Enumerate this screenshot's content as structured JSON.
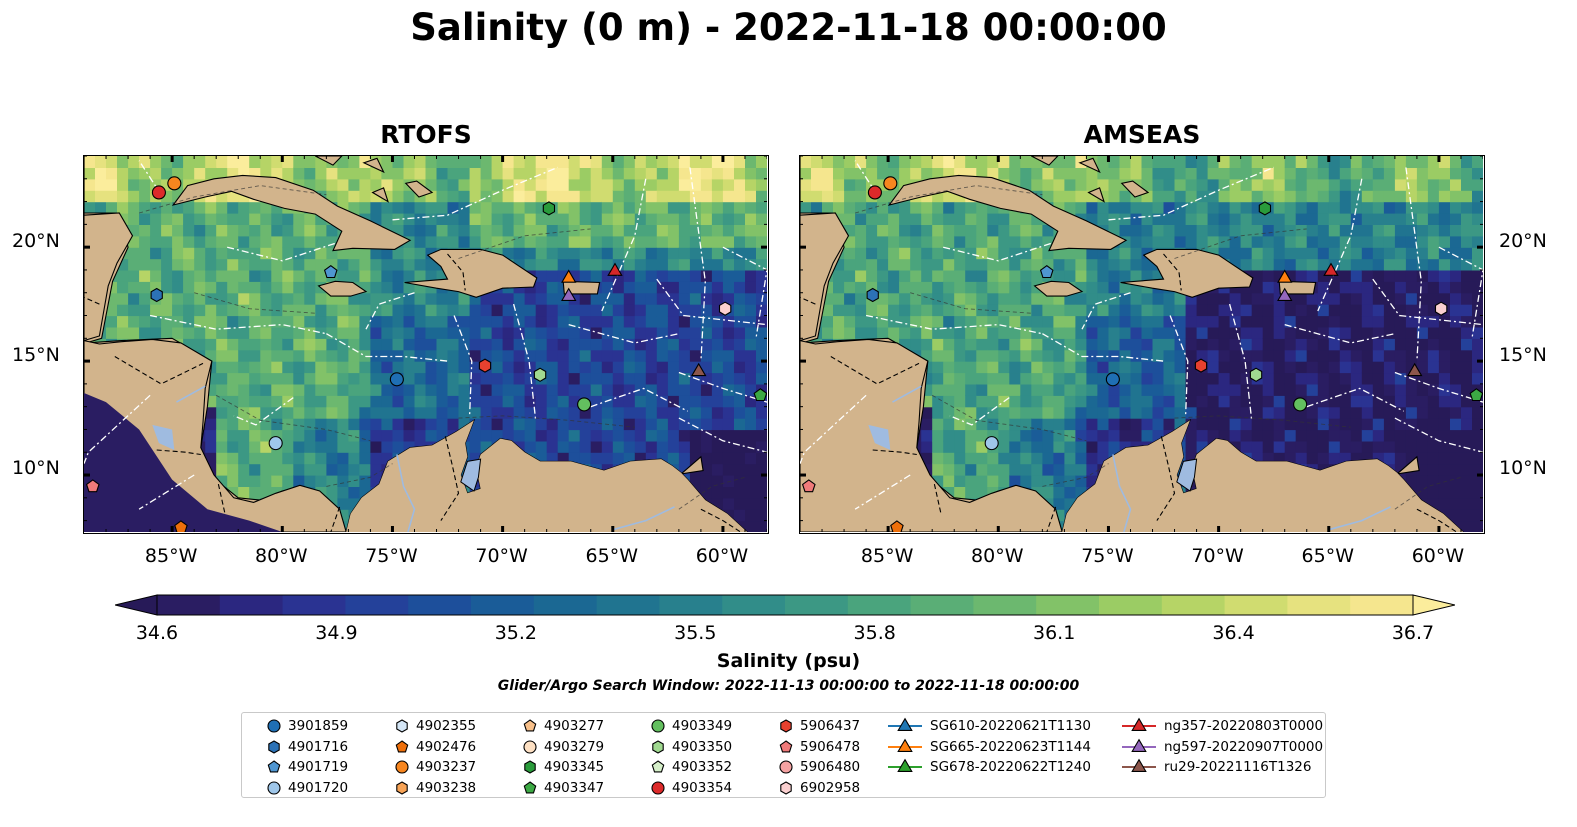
{
  "figure": {
    "title": "Salinity (0 m) - 2022-11-18 00:00:00",
    "search_window": "Glider/Argo Search Window: 2022-11-13 00:00:00 to 2022-11-18 00:00:00"
  },
  "maps": [
    {
      "title": "RTOFS",
      "variant": "rtofs"
    },
    {
      "title": "AMSEAS",
      "variant": "amseas"
    }
  ],
  "axes": {
    "lon_range": [
      -89,
      -58
    ],
    "lat_range": [
      7.5,
      24
    ],
    "lon_ticks": [
      -85,
      -80,
      -75,
      -70,
      -65,
      -60
    ],
    "lon_tick_labels": [
      "85°W",
      "80°W",
      "75°W",
      "70°W",
      "65°W",
      "60°W"
    ],
    "lat_ticks": [
      10,
      15,
      20
    ],
    "lat_tick_labels": [
      "10°N",
      "15°N",
      "20°N"
    ]
  },
  "colorbar": {
    "label": "Salinity (psu)",
    "min": 34.6,
    "max": 36.7,
    "ticks": [
      "34.6",
      "34.9",
      "35.2",
      "35.5",
      "35.8",
      "36.1",
      "36.4",
      "36.7"
    ],
    "colors": [
      "#2a1d62",
      "#2b2780",
      "#2a3392",
      "#24419a",
      "#1d4f9b",
      "#1a5c98",
      "#1b6893",
      "#207490",
      "#28808d",
      "#318d89",
      "#3c9884",
      "#4aa47d",
      "#5aae76",
      "#6cb86f",
      "#82c268",
      "#9bcc64",
      "#b6d466",
      "#d0dc70",
      "#e6e27f",
      "#f5e68e"
    ],
    "under_color": "#271a58",
    "over_color": "#fbed9c"
  },
  "colors": {
    "land": "#d2b48c",
    "lake": "#9fbbe0",
    "pacific_amseas": "#9ab6e2"
  },
  "markers": [
    {
      "id": "3901859",
      "shape": "circle",
      "color": "#1f6fb4",
      "lon": null,
      "lat": null
    },
    {
      "id": "4901716",
      "shape": "hexagon",
      "color": "#2c72b6",
      "lon": null,
      "lat": null
    },
    {
      "id": "4901719",
      "shape": "pentagon",
      "color": "#4f96d1",
      "lon": null,
      "lat": null
    },
    {
      "id": "4901720",
      "shape": "circle",
      "color": "#9fc7ea",
      "lon": -80.3,
      "lat": 11.4
    },
    {
      "id": "4902355",
      "shape": "hexagon",
      "color": "#d4e6f6",
      "lon": null,
      "lat": null
    },
    {
      "id": "4902476",
      "shape": "pentagon",
      "color": "#ee6f0a",
      "lon": -84.6,
      "lat": 7.7
    },
    {
      "id": "4903237",
      "shape": "circle",
      "color": "#f7861f",
      "lon": -84.9,
      "lat": 22.8
    },
    {
      "id": "4903238",
      "shape": "hexagon",
      "color": "#f7a356",
      "lon": null,
      "lat": null
    },
    {
      "id": "4903277",
      "shape": "pentagon",
      "color": "#f8c08a",
      "lon": null,
      "lat": null
    },
    {
      "id": "4903279",
      "shape": "circle",
      "color": "#fde0c3",
      "lon": null,
      "lat": null
    },
    {
      "id": "4903345",
      "shape": "hexagon",
      "color": "#2a9b3b",
      "lon": -67.9,
      "lat": 21.7
    },
    {
      "id": "4903347",
      "shape": "pentagon",
      "color": "#3ca944",
      "lon": -58.3,
      "lat": 13.5
    },
    {
      "id": "4903349",
      "shape": "circle",
      "color": "#63bf5f",
      "lon": -66.3,
      "lat": 13.1
    },
    {
      "id": "4903350",
      "shape": "hexagon",
      "color": "#a0d990",
      "lon": -68.3,
      "lat": 14.4
    },
    {
      "id": "4903352",
      "shape": "pentagon",
      "color": "#d5efc9",
      "lon": null,
      "lat": null
    },
    {
      "id": "4903354",
      "shape": "circle",
      "color": "#dd2a2a",
      "lon": -85.6,
      "lat": 22.4
    },
    {
      "id": "5906437",
      "shape": "hexagon",
      "color": "#e8412f",
      "lon": -70.8,
      "lat": 14.8
    },
    {
      "id": "5906478",
      "shape": "pentagon",
      "color": "#f07a7a",
      "lon": -88.6,
      "lat": 9.5
    },
    {
      "id": "5906480",
      "shape": "circle",
      "color": "#f4a2a2",
      "lon": null,
      "lat": null
    },
    {
      "id": "6902958",
      "shape": "hexagon",
      "color": "#fbd0d0",
      "lon": -59.9,
      "lat": 17.3
    },
    {
      "id": "SG610-20220621T1130",
      "shape": "triangle",
      "color": "#1f77b4",
      "lon": null,
      "lat": null
    },
    {
      "id": "SG665-20220623T1144",
      "shape": "triangle",
      "color": "#ff7f0e",
      "lon": -67.0,
      "lat": 18.7
    },
    {
      "id": "SG678-20220622T1240",
      "shape": "triangle",
      "color": "#2ca02c",
      "lon": null,
      "lat": null
    },
    {
      "id": "ng357-20220803T0000",
      "shape": "triangle",
      "color": "#d62728",
      "lon": -64.9,
      "lat": 19.0
    },
    {
      "id": "ng597-20220907T0000",
      "shape": "triangle",
      "color": "#9467bd",
      "lon": -67.0,
      "lat": 17.9
    },
    {
      "id": "ru29-20221116T1326",
      "shape": "triangle",
      "color": "#8c564b",
      "lon": -61.1,
      "lat": 14.6
    }
  ],
  "map_only_markers": [
    {
      "shape": "circle",
      "color": "#1f6fb4",
      "lon": -74.8,
      "lat": 14.2
    },
    {
      "shape": "hexagon",
      "color": "#2c72b6",
      "lon": -85.7,
      "lat": 17.9
    },
    {
      "shape": "pentagon",
      "color": "#4f96d1",
      "lon": -77.8,
      "lat": 18.9
    }
  ]
}
